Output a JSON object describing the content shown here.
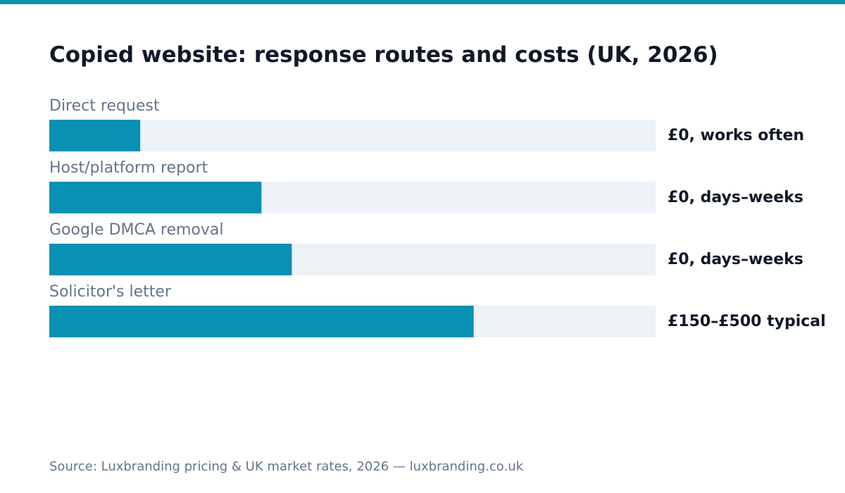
{
  "colors": {
    "accent": "#0891b2",
    "track": "#edf2f7",
    "title": "#111827",
    "muted": "#64748b"
  },
  "chart_data": {
    "type": "bar",
    "orientation": "horizontal",
    "title": "Copied website: response routes and costs (UK, 2026)",
    "categories": [
      "Direct request",
      "Host/platform report",
      "Google DMCA removal",
      "Solicitor's letter"
    ],
    "values": [
      15,
      35,
      40,
      70
    ],
    "xlim": [
      0,
      100
    ],
    "value_labels": [
      "£0, works often",
      "£0, days–weeks",
      "£0, days–weeks",
      "£150–£500 typical"
    ],
    "grid": false,
    "legend": "none",
    "xlabel": "",
    "ylabel": ""
  },
  "footer": {
    "source": "Source: Luxbranding pricing & UK market rates, 2026 — luxbranding.co.uk"
  }
}
